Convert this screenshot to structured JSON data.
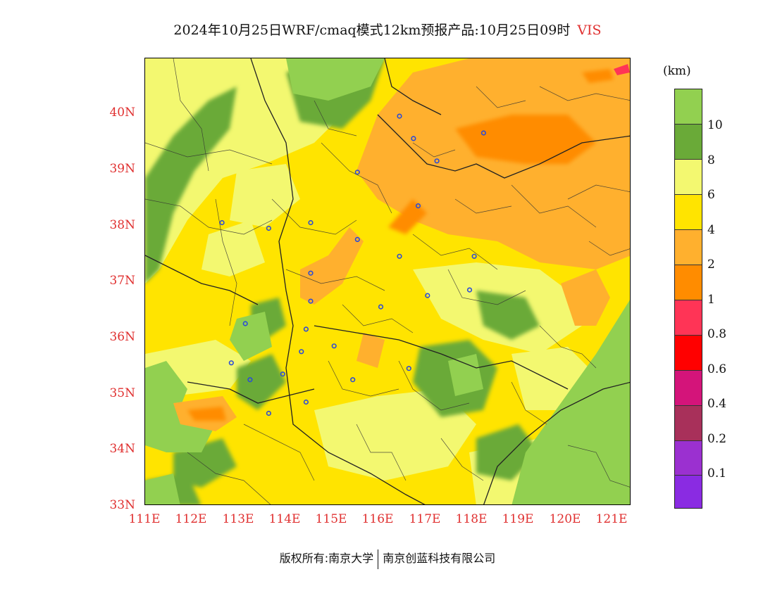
{
  "title": {
    "text": "2024年10月25日WRF/cmaq模式12km预报产品:10月25日09时",
    "variable": "VIS"
  },
  "map": {
    "lon_range": [
      111,
      121.4
    ],
    "lat_range": [
      33,
      41
    ],
    "lat_ticks": [
      "40N",
      "39N",
      "38N",
      "37N",
      "36N",
      "35N",
      "34N",
      "33N"
    ],
    "lon_ticks": [
      "111E",
      "112E",
      "113E",
      "114E",
      "115E",
      "116E",
      "117E",
      "118E",
      "119E",
      "120E",
      "121E"
    ],
    "stations": [
      [
        116.4,
        39.9
      ],
      [
        116.7,
        39.5
      ],
      [
        117.2,
        39.1
      ],
      [
        118.2,
        39.6
      ],
      [
        115.5,
        38.9
      ],
      [
        116.8,
        38.3
      ],
      [
        112.6,
        38.0
      ],
      [
        113.6,
        37.9
      ],
      [
        114.5,
        38.0
      ],
      [
        115.5,
        37.7
      ],
      [
        116.4,
        37.4
      ],
      [
        118.0,
        37.4
      ],
      [
        114.5,
        37.1
      ],
      [
        114.5,
        36.6
      ],
      [
        117.0,
        36.7
      ],
      [
        117.9,
        36.8
      ],
      [
        116.0,
        36.5
      ],
      [
        113.1,
        36.2
      ],
      [
        114.4,
        36.1
      ],
      [
        114.3,
        35.7
      ],
      [
        115.0,
        35.8
      ],
      [
        112.8,
        35.5
      ],
      [
        113.2,
        35.2
      ],
      [
        113.9,
        35.3
      ],
      [
        115.4,
        35.2
      ],
      [
        116.6,
        35.4
      ],
      [
        114.4,
        34.8
      ],
      [
        113.6,
        34.6
      ]
    ]
  },
  "colorbar": {
    "unit": "(km)",
    "labels": [
      "10",
      "8",
      "6",
      "4",
      "2",
      "1",
      "0.8",
      "0.6",
      "0.4",
      "0.2",
      "0.1"
    ],
    "colors": [
      "#92d050",
      "#6aaa38",
      "#f3f870",
      "#ffe400",
      "#ffb02e",
      "#ff8c00",
      "#ff3456",
      "#ff0000",
      "#d4147a",
      "#a8305a",
      "#9b30d0",
      "#8a2be2"
    ]
  },
  "footer": {
    "left": "版权所有:南京大学",
    "right": "南京创蓝科技有限公司"
  }
}
